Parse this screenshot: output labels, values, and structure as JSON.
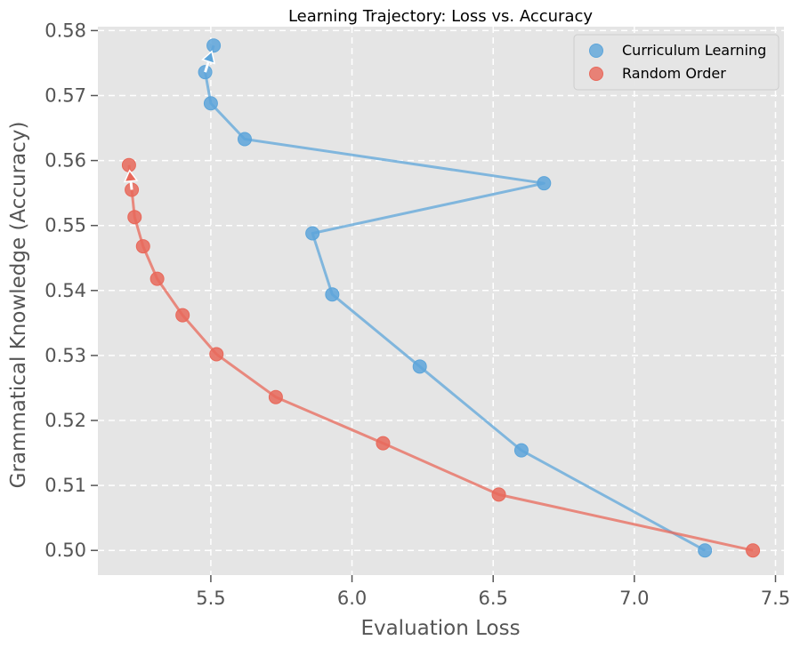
{
  "chart_data": {
    "type": "scatter",
    "title": "Learning Trajectory: Loss vs. Accuracy",
    "xlabel": "Evaluation Loss",
    "ylabel": "Grammatical Knowledge (Accuracy)",
    "xlim": [
      5.1,
      7.53
    ],
    "ylim": [
      0.4962,
      0.5806
    ],
    "xticks": [
      "5.5",
      "6.0",
      "6.5",
      "7.0",
      "7.5"
    ],
    "yticks": [
      "0.50",
      "0.51",
      "0.52",
      "0.53",
      "0.54",
      "0.55",
      "0.56",
      "0.57",
      "0.58"
    ],
    "grid": true,
    "legend_position": "top-right",
    "series": [
      {
        "name": "Curriculum Learning",
        "color": "#5DA5DA",
        "points": [
          {
            "x": 7.25,
            "y": 0.5
          },
          {
            "x": 6.6,
            "y": 0.5154
          },
          {
            "x": 6.24,
            "y": 0.5283
          },
          {
            "x": 5.93,
            "y": 0.5394
          },
          {
            "x": 5.86,
            "y": 0.5488
          },
          {
            "x": 6.68,
            "y": 0.5565
          },
          {
            "x": 5.62,
            "y": 0.5633
          },
          {
            "x": 5.5,
            "y": 0.5688
          },
          {
            "x": 5.48,
            "y": 0.5736
          },
          {
            "x": 5.51,
            "y": 0.5777
          }
        ]
      },
      {
        "name": "Random Order",
        "color": "#E8685A",
        "points": [
          {
            "x": 7.42,
            "y": 0.5
          },
          {
            "x": 6.52,
            "y": 0.5086
          },
          {
            "x": 6.11,
            "y": 0.5165
          },
          {
            "x": 5.73,
            "y": 0.5236
          },
          {
            "x": 5.52,
            "y": 0.5302
          },
          {
            "x": 5.4,
            "y": 0.5362
          },
          {
            "x": 5.31,
            "y": 0.5418
          },
          {
            "x": 5.26,
            "y": 0.5468
          },
          {
            "x": 5.23,
            "y": 0.5513
          },
          {
            "x": 5.22,
            "y": 0.5555
          },
          {
            "x": 5.21,
            "y": 0.5593
          }
        ]
      }
    ]
  }
}
